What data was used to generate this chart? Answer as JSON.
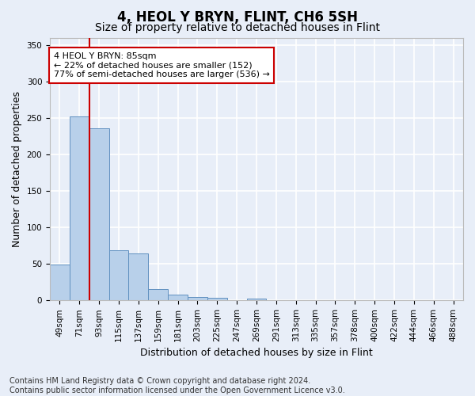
{
  "title": "4, HEOL Y BRYN, FLINT, CH6 5SH",
  "subtitle": "Size of property relative to detached houses in Flint",
  "xlabel": "Distribution of detached houses by size in Flint",
  "ylabel": "Number of detached properties",
  "footnote": "Contains HM Land Registry data © Crown copyright and database right 2024.\nContains public sector information licensed under the Open Government Licence v3.0.",
  "bar_labels": [
    "49sqm",
    "71sqm",
    "93sqm",
    "115sqm",
    "137sqm",
    "159sqm",
    "181sqm",
    "203sqm",
    "225sqm",
    "247sqm",
    "269sqm",
    "291sqm",
    "313sqm",
    "335sqm",
    "357sqm",
    "378sqm",
    "400sqm",
    "422sqm",
    "444sqm",
    "466sqm",
    "488sqm"
  ],
  "bar_values": [
    49,
    252,
    236,
    69,
    64,
    16,
    8,
    5,
    4,
    0,
    3,
    0,
    0,
    0,
    0,
    0,
    0,
    0,
    0,
    0,
    0
  ],
  "bar_color": "#b8d0ea",
  "bar_edge_color": "#6090c0",
  "property_line_x": 1.5,
  "annotation_line1": "4 HEOL Y BRYN: 85sqm",
  "annotation_line2": "← 22% of detached houses are smaller (152)",
  "annotation_line3": "77% of semi-detached houses are larger (536) →",
  "annotation_box_color": "#ffffff",
  "annotation_box_edge": "#cc0000",
  "annotation_line_color": "#cc0000",
  "ylim": [
    0,
    360
  ],
  "yticks": [
    0,
    50,
    100,
    150,
    200,
    250,
    300,
    350
  ],
  "background_color": "#e8eef8",
  "grid_color": "#ffffff",
  "title_fontsize": 12,
  "subtitle_fontsize": 10,
  "axis_label_fontsize": 9,
  "tick_fontsize": 7.5,
  "annotation_fontsize": 8,
  "footnote_fontsize": 7
}
